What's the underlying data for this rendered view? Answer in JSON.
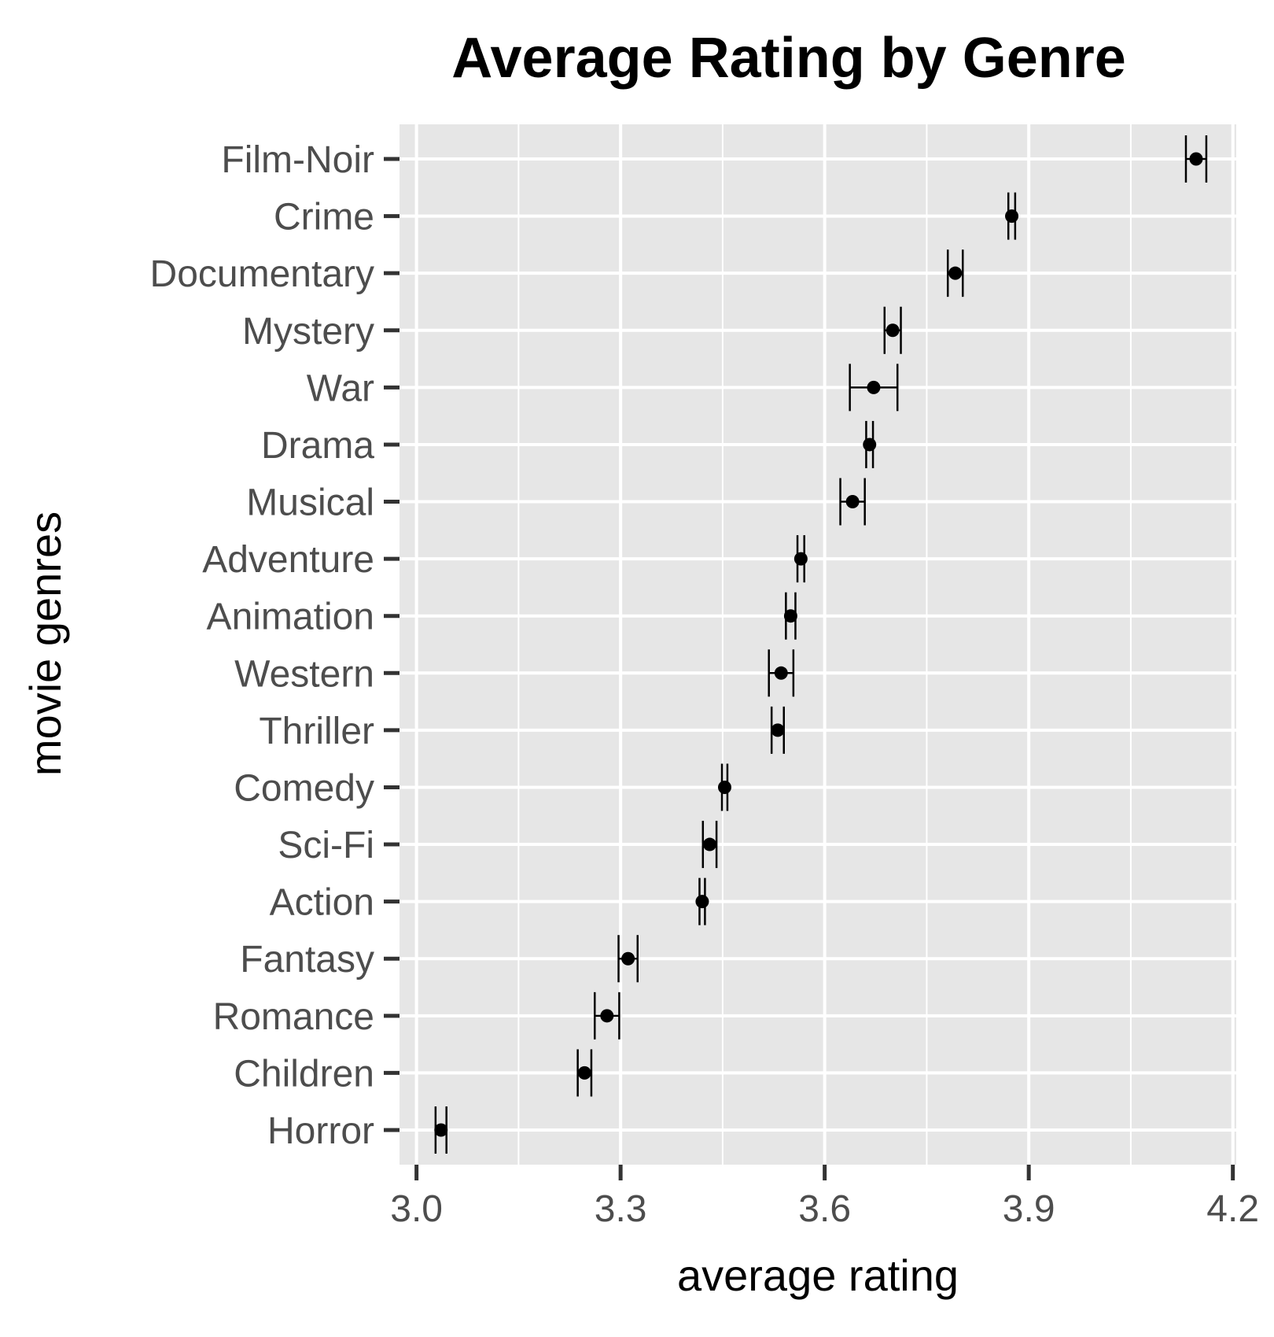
{
  "chart_data": {
    "type": "scatter",
    "title": "Average Rating by Genre",
    "xlabel": "average rating",
    "ylabel": "movie genres",
    "xlim": [
      2.975,
      4.205
    ],
    "x_ticks": [
      3.0,
      3.3,
      3.6,
      3.9,
      4.2
    ],
    "x_tick_labels": [
      "3.0",
      "3.3",
      "3.6",
      "3.9",
      "4.2"
    ],
    "grid": true,
    "panel_background": "#e6e6e6",
    "grid_color": "#ffffff",
    "point_color": "#000000",
    "categories": [
      "Film-Noir",
      "Crime",
      "Documentary",
      "Mystery",
      "War",
      "Drama",
      "Musical",
      "Adventure",
      "Animation",
      "Western",
      "Thriller",
      "Comedy",
      "Sci-Fi",
      "Action",
      "Fantasy",
      "Romance",
      "Children",
      "Horror"
    ],
    "series": [
      {
        "values": [
          4.146,
          3.875,
          3.792,
          3.7,
          3.672,
          3.666,
          3.641,
          3.565,
          3.55,
          3.536,
          3.531,
          3.453,
          3.431,
          3.42,
          3.311,
          3.28,
          3.247,
          3.036
        ],
        "lower": [
          4.131,
          3.87,
          3.781,
          3.688,
          3.637,
          3.661,
          3.623,
          3.56,
          3.543,
          3.518,
          3.522,
          3.449,
          3.421,
          3.416,
          3.297,
          3.262,
          3.237,
          3.028
        ],
        "upper": [
          4.161,
          3.88,
          3.803,
          3.712,
          3.707,
          3.671,
          3.659,
          3.57,
          3.557,
          3.554,
          3.54,
          3.457,
          3.441,
          3.424,
          3.325,
          3.298,
          3.257,
          3.044
        ]
      }
    ]
  }
}
